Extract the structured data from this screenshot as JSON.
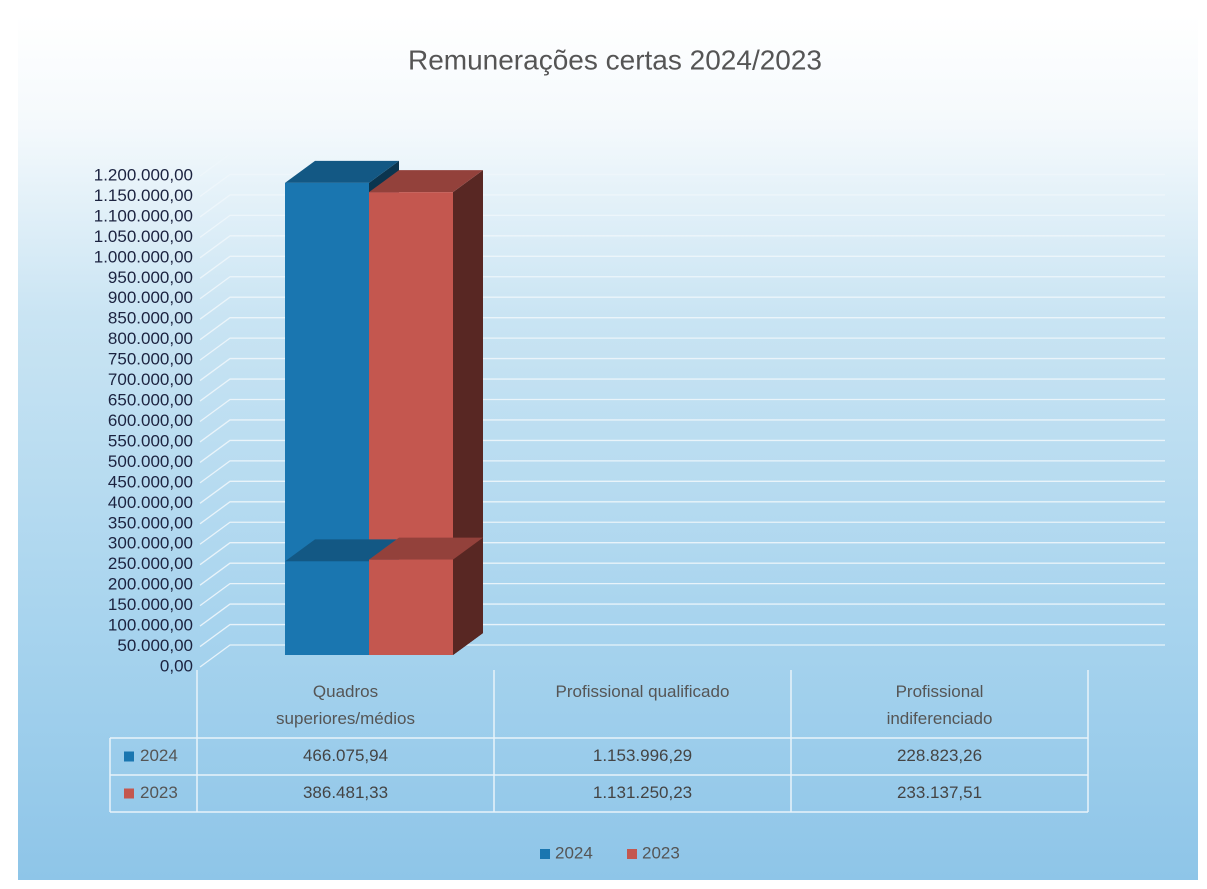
{
  "chart_data": {
    "type": "bar3d",
    "title": "Remunerações certas 2024/2023",
    "categories": [
      "Quadros superiores/médios",
      "Profissional qualificado",
      "Profissional indiferenciado"
    ],
    "series": [
      {
        "name": "2024",
        "color": "#1a76b0",
        "values": [
          466075.94,
          1153996.29,
          228823.26
        ],
        "value_labels": [
          "466.075,94",
          "1.153.996,29",
          "228.823,26"
        ]
      },
      {
        "name": "2023",
        "color": "#c4574f",
        "values": [
          386481.33,
          1131250.23,
          233137.51
        ],
        "value_labels": [
          "386.481,33",
          "1.131.250,23",
          "233.137,51"
        ]
      }
    ],
    "ylim": [
      0,
      1200000
    ],
    "yticks": [
      {
        "value": 0,
        "label": "0,00"
      },
      {
        "value": 50000,
        "label": "50.000,00"
      },
      {
        "value": 100000,
        "label": "100.000,00"
      },
      {
        "value": 150000,
        "label": "150.000,00"
      },
      {
        "value": 200000,
        "label": "200.000,00"
      },
      {
        "value": 250000,
        "label": "250.000,00"
      },
      {
        "value": 300000,
        "label": "300.000,00"
      },
      {
        "value": 350000,
        "label": "350.000,00"
      },
      {
        "value": 400000,
        "label": "400.000,00"
      },
      {
        "value": 450000,
        "label": "450.000,00"
      },
      {
        "value": 500000,
        "label": "500.000,00"
      },
      {
        "value": 550000,
        "label": "550.000,00"
      },
      {
        "value": 600000,
        "label": "600.000,00"
      },
      {
        "value": 650000,
        "label": "650.000,00"
      },
      {
        "value": 700000,
        "label": "700.000,00"
      },
      {
        "value": 750000,
        "label": "750.000,00"
      },
      {
        "value": 800000,
        "label": "800.000,00"
      },
      {
        "value": 850000,
        "label": "850.000,00"
      },
      {
        "value": 900000,
        "label": "900.000,00"
      },
      {
        "value": 950000,
        "label": "950.000,00"
      },
      {
        "value": 1000000,
        "label": "1.000.000,00"
      },
      {
        "value": 1050000,
        "label": "1.050.000,00"
      },
      {
        "value": 1100000,
        "label": "1.100.000,00"
      },
      {
        "value": 1150000,
        "label": "1.150.000,00"
      },
      {
        "value": 1200000,
        "label": "1.200.000,00"
      }
    ],
    "grid": true,
    "legend": "bottom"
  }
}
